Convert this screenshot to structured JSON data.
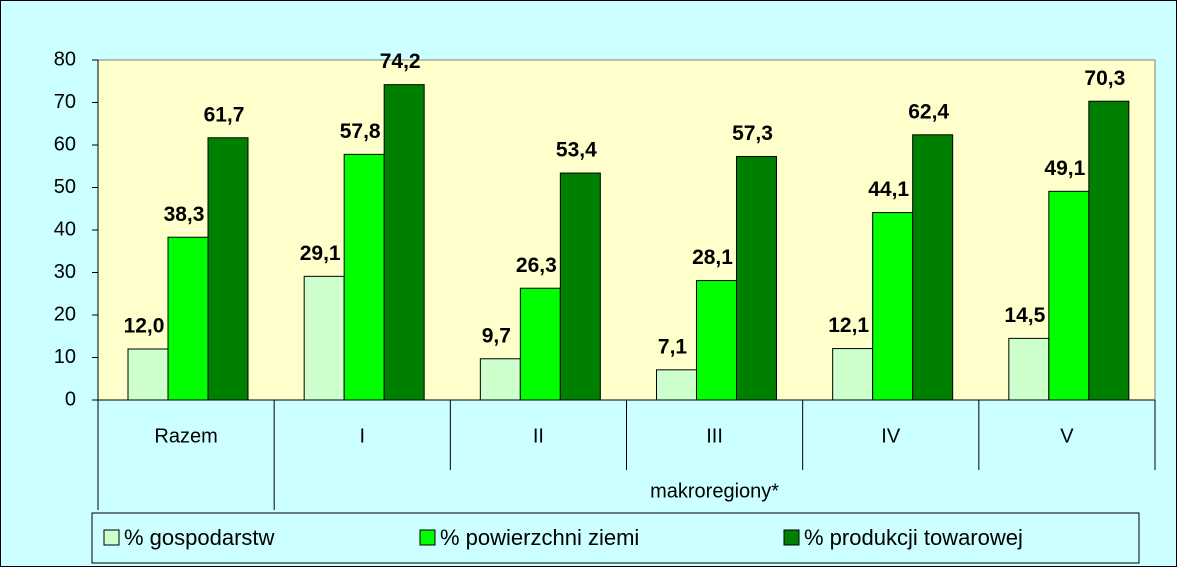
{
  "chart_data": {
    "type": "bar",
    "categories": [
      "Razem",
      "I",
      "II",
      "III",
      "IV",
      "V"
    ],
    "group_label": "makroregiony*",
    "series": [
      {
        "name": "% gospodarstw",
        "color": "#ccffcc",
        "values": [
          12.0,
          29.1,
          9.7,
          7.1,
          12.1,
          14.5
        ],
        "value_labels": [
          "12,0",
          "29,1",
          "9,7",
          "7,1",
          "12,1",
          "14,5"
        ]
      },
      {
        "name": "% powierzchni ziemi",
        "color": "#00ff00",
        "values": [
          38.3,
          57.8,
          26.3,
          28.1,
          44.1,
          49.1
        ],
        "value_labels": [
          "38,3",
          "57,8",
          "26,3",
          "28,1",
          "44,1",
          "49,1"
        ]
      },
      {
        "name": "% produkcji towarowej",
        "color": "#008000",
        "values": [
          61.7,
          74.2,
          53.4,
          57.3,
          62.4,
          70.3
        ],
        "value_labels": [
          "61,7",
          "74,2",
          "53,4",
          "57,3",
          "62,4",
          "70,3"
        ]
      }
    ],
    "ylim": [
      0,
      80
    ],
    "yticks": [
      0,
      10,
      20,
      30,
      40,
      50,
      60,
      70,
      80
    ],
    "legend": "bottom"
  }
}
